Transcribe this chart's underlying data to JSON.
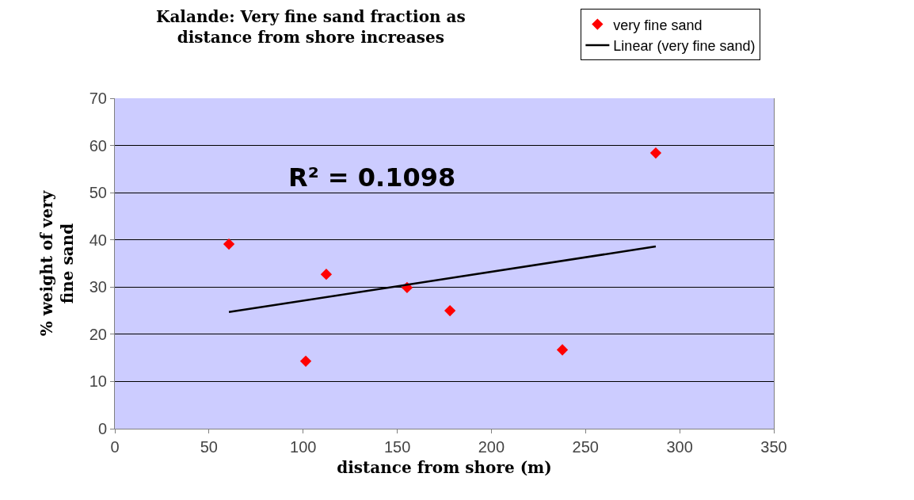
{
  "chart_data": {
    "type": "scatter",
    "title": "Kalande: Very fine sand fraction as distance from shore increases",
    "xlabel": "distance from shore (m)",
    "ylabel": "% weight of very fine sand",
    "annotations": [
      "R² = 0.1098"
    ],
    "series": [
      {
        "name": "very fine sand",
        "color": "#ff0000",
        "marker": "diamond",
        "x": [
          60.6,
          101.4,
          112.3,
          155.2,
          178,
          237.7,
          287.3
        ],
        "values": [
          39.1,
          14.3,
          32.7,
          29.9,
          25.0,
          16.7,
          58.4
        ]
      },
      {
        "name": "Linear (very fine sand)",
        "type": "line",
        "color": "#000000",
        "marker": "none",
        "line_style": "solid",
        "x": [
          60.6,
          287.3
        ],
        "values": [
          24.7,
          38.6
        ]
      }
    ],
    "xlim": [
      0,
      350
    ],
    "xticks": [
      0,
      50,
      100,
      150,
      200,
      250,
      300,
      350
    ],
    "ylim": [
      0,
      70
    ],
    "yticks": [
      0,
      10,
      20,
      30,
      40,
      50,
      60,
      70
    ],
    "grid": "y",
    "legend": "top right"
  }
}
